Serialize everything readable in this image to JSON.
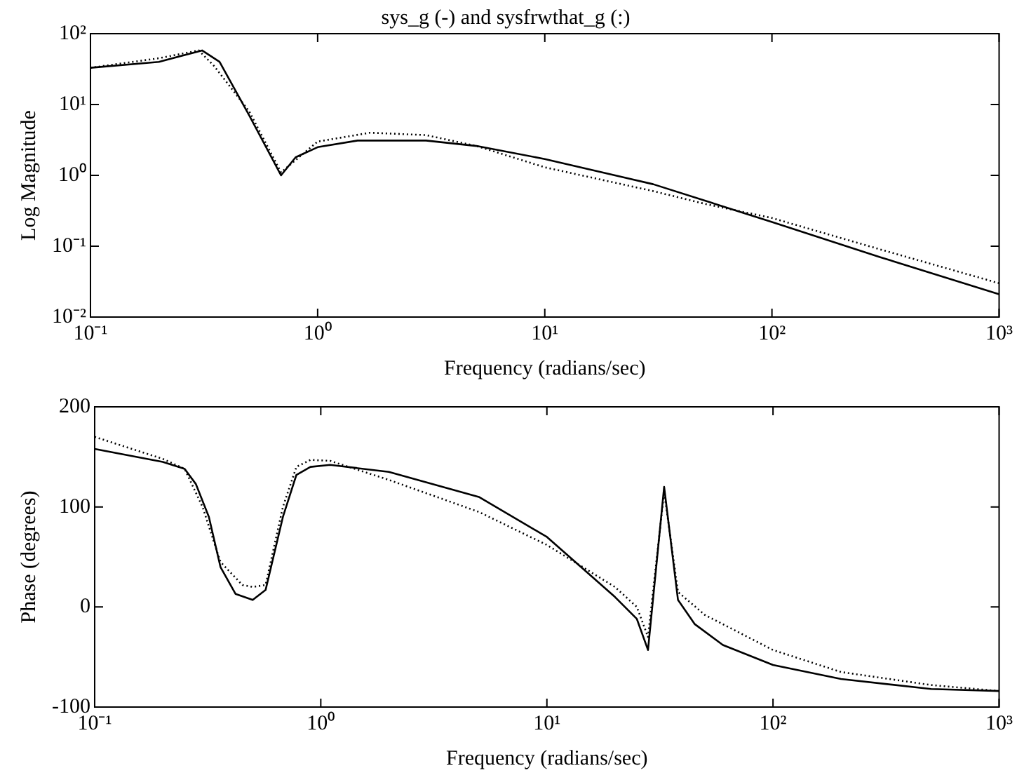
{
  "chart_data": [
    {
      "type": "line",
      "title": "sys_g (-) and sysfrwthat_g (:)",
      "xlabel": "Frequency (radians/sec)",
      "ylabel": "Log Magnitude",
      "log": "xy",
      "grid": false,
      "legend": false,
      "xlim": [
        0.1,
        1000
      ],
      "xticks": [
        {
          "value": 0.1,
          "label": "10⁻¹"
        },
        {
          "value": 1,
          "label": "10⁰"
        },
        {
          "value": 10,
          "label": "10¹"
        },
        {
          "value": 100,
          "label": "10²"
        },
        {
          "value": 1000,
          "label": "10³"
        }
      ],
      "ylim": [
        0.01,
        100
      ],
      "yticks": [
        {
          "value": 0.01,
          "label": "10⁻²"
        },
        {
          "value": 0.1,
          "label": "10⁻¹"
        },
        {
          "value": 1,
          "label": "10⁰"
        },
        {
          "value": 10,
          "label": "10¹"
        },
        {
          "value": 100,
          "label": "10²"
        }
      ],
      "series": [
        {
          "color": "#000000",
          "line_style": "solid",
          "x": [
            0.1,
            0.2,
            0.31,
            0.37,
            0.5,
            0.69,
            0.8,
            1.0,
            1.5,
            3,
            5,
            10,
            30,
            100,
            300,
            1000
          ],
          "values": [
            33,
            40,
            58,
            40,
            7,
            1.0,
            1.8,
            2.5,
            3.1,
            3.1,
            2.6,
            1.7,
            0.75,
            0.22,
            0.07,
            0.021
          ]
        },
        {
          "color": "#000000",
          "line_style": "dotted",
          "x": [
            0.1,
            0.2,
            0.3,
            0.35,
            0.5,
            0.69,
            1.0,
            1.7,
            3,
            5,
            10,
            30,
            50,
            100,
            300,
            1000
          ],
          "values": [
            33,
            45,
            58,
            35,
            8,
            1.1,
            3.0,
            4.0,
            3.7,
            2.6,
            1.3,
            0.6,
            0.4,
            0.25,
            0.09,
            0.03
          ]
        }
      ]
    },
    {
      "type": "line",
      "xlabel": "Frequency (radians/sec)",
      "ylabel": "Phase (degrees)",
      "log": "x",
      "grid": false,
      "legend": false,
      "xlim": [
        0.1,
        1000
      ],
      "xticks": [
        {
          "value": 0.1,
          "label": "10⁻¹"
        },
        {
          "value": 1,
          "label": "10⁰"
        },
        {
          "value": 10,
          "label": "10¹"
        },
        {
          "value": 100,
          "label": "10²"
        },
        {
          "value": 1000,
          "label": "10³"
        }
      ],
      "ylim": [
        -100,
        200
      ],
      "yticks": [
        -100,
        0,
        100,
        200
      ],
      "series": [
        {
          "color": "#000000",
          "line_style": "solid",
          "x": [
            0.1,
            0.2,
            0.25,
            0.28,
            0.32,
            0.36,
            0.42,
            0.5,
            0.57,
            0.68,
            0.78,
            0.9,
            1.1,
            2,
            5,
            10,
            20,
            25,
            28,
            33,
            38,
            45,
            60,
            100,
            200,
            500,
            1000
          ],
          "values": [
            158,
            145,
            138,
            123,
            90,
            40,
            13,
            7,
            17,
            90,
            132,
            140,
            142,
            135,
            110,
            70,
            10,
            -12,
            -43,
            120,
            7,
            -17,
            -38,
            -58,
            -72,
            -82,
            -84
          ]
        },
        {
          "color": "#000000",
          "line_style": "dotted",
          "x": [
            0.1,
            0.2,
            0.25,
            0.3,
            0.36,
            0.45,
            0.5,
            0.57,
            0.68,
            0.78,
            0.9,
            1.1,
            2,
            5,
            10,
            20,
            25,
            28,
            33,
            38,
            50,
            100,
            200,
            500,
            1000
          ],
          "values": [
            170,
            148,
            138,
            100,
            45,
            22,
            20,
            22,
            100,
            140,
            147,
            146,
            127,
            95,
            62,
            20,
            0,
            -30,
            115,
            15,
            -8,
            -43,
            -65,
            -78,
            -84
          ]
        }
      ]
    }
  ]
}
